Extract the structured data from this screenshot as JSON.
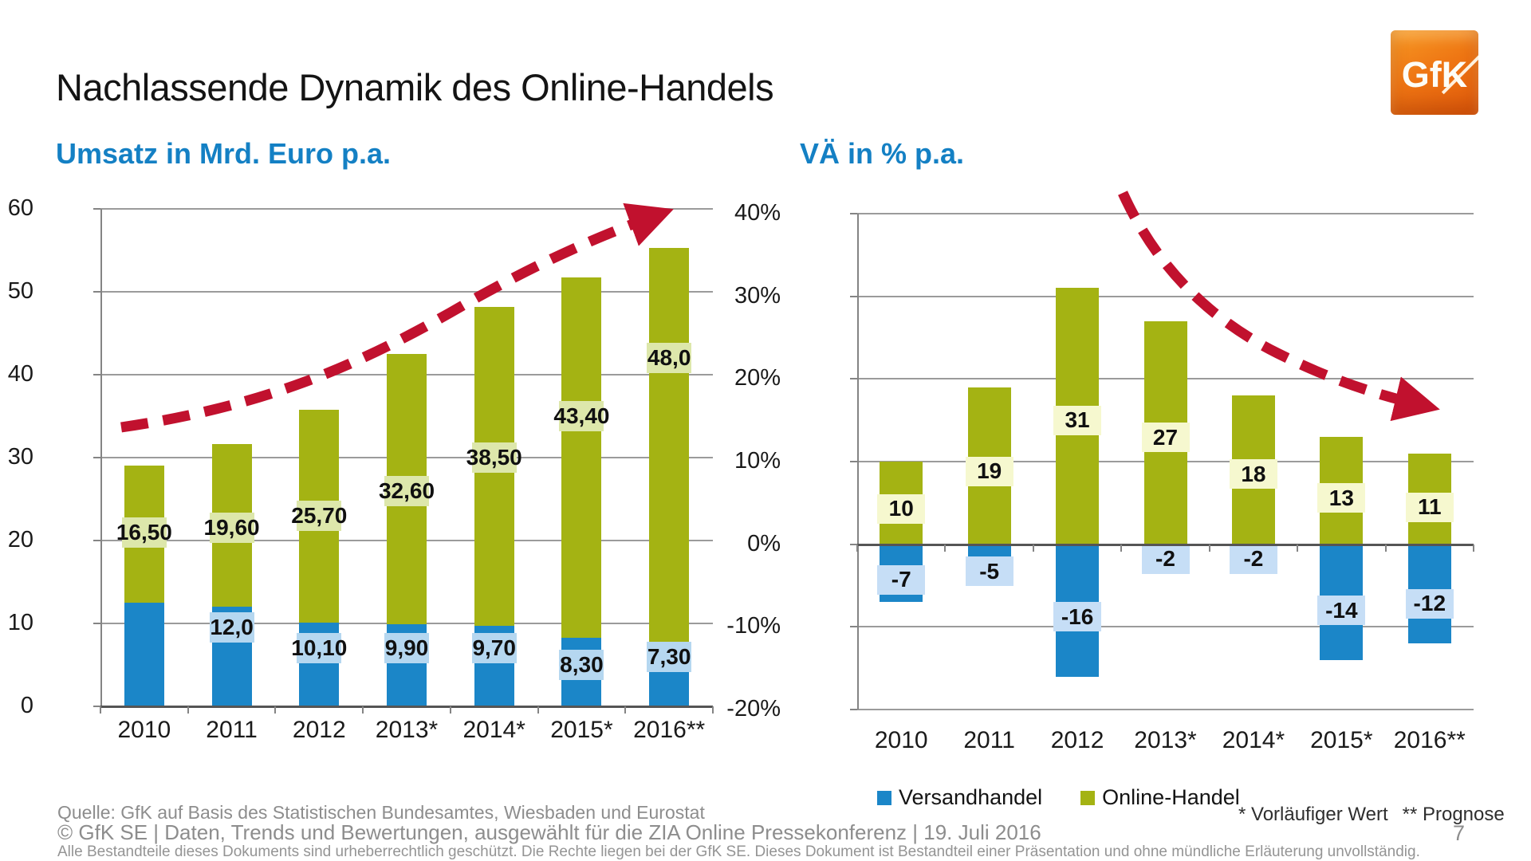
{
  "slide": {
    "title": "Nachlassende Dynamik des Online-Handels",
    "page_number": "7"
  },
  "logo": {
    "text": "GfK",
    "bg_color": "#ee7513"
  },
  "legend": {
    "items": [
      {
        "label": "Versandhandel",
        "color": "#1b86c8"
      },
      {
        "label": "Online-Handel",
        "color": "#a4b313"
      }
    ]
  },
  "footnotes": {
    "marker1": "* Vorläufiger Wert",
    "marker2": "** Prognose"
  },
  "footer": {
    "line1": "Quelle: GfK auf Basis des Statistischen Bundesamtes, Wiesbaden und Eurostat",
    "line2": "© GfK SE | Daten, Trends und Bewertungen, ausgewählt für die ZIA Online Pressekonferenz  | 19. Juli 2016",
    "line3": "Alle Bestandteile dieses Dokuments sind urheberrechtlich geschützt. Die Rechte liegen bei der GfK SE. Dieses Dokument ist Bestandteil einer Präsentation und ohne mündliche Erläuterung unvollständig."
  },
  "chart_data": [
    {
      "id": "umsatz",
      "type": "bar",
      "stacked": true,
      "title": "Umsatz in Mrd. Euro p.a.",
      "categories": [
        "2010",
        "2011",
        "2012",
        "2013*",
        "2014*",
        "2015*",
        "2016**"
      ],
      "ylim": [
        0,
        60
      ],
      "grid": true,
      "yticks": [
        {
          "v": 60,
          "label": "60"
        },
        {
          "v": 50,
          "label": "50"
        },
        {
          "v": 40,
          "label": "40"
        },
        {
          "v": 30,
          "label": "30"
        },
        {
          "v": 20,
          "label": "20"
        },
        {
          "v": 10,
          "label": "10"
        },
        {
          "v": 0,
          "label": "0"
        }
      ],
      "series": [
        {
          "name": "Versandhandel",
          "color": "#1b86c8",
          "label_bg": "#b5d7f0",
          "values": [
            12.5,
            12.0,
            10.1,
            9.9,
            9.7,
            8.3,
            7.3
          ],
          "labels": [
            "",
            "12,0",
            "10,10",
            "9,90",
            "9,70",
            "8,30",
            "7,30"
          ],
          "label_y": [
            null,
            9.5,
            7,
            7,
            7,
            5,
            6
          ]
        },
        {
          "name": "Online-Handel",
          "color": "#a4b313",
          "label_bg": "#dde7ab",
          "values": [
            16.5,
            19.6,
            25.7,
            32.6,
            38.5,
            43.4,
            48.0
          ],
          "labels": [
            "16,50",
            "19,60",
            "25,70",
            "32,60",
            "38,50",
            "43,40",
            "48,0"
          ],
          "label_y": [
            21,
            21.5,
            23,
            26,
            30,
            35,
            42
          ]
        }
      ],
      "trend_arrow": {
        "direction": "up",
        "color": "#c1112e"
      }
    },
    {
      "id": "vae",
      "type": "bar",
      "stacked": true,
      "title": "VÄ in % p.a.",
      "categories": [
        "2010",
        "2011",
        "2012",
        "2013*",
        "2014*",
        "2015*",
        "2016**"
      ],
      "ylim": [
        -20,
        40
      ],
      "grid": true,
      "yticks": [
        {
          "v": 40,
          "label": "40%"
        },
        {
          "v": 30,
          "label": "30%"
        },
        {
          "v": 20,
          "label": "20%"
        },
        {
          "v": 10,
          "label": "10%"
        },
        {
          "v": 0,
          "label": "0%"
        },
        {
          "v": -10,
          "label": "-10%"
        },
        {
          "v": -20,
          "label": "-20%"
        }
      ],
      "series": [
        {
          "name": "Versandhandel",
          "color": "#1b86c8",
          "label_bg": "#c6def6",
          "values": [
            -7,
            -5,
            -16,
            -2,
            -2,
            -14,
            -12
          ],
          "labels": [
            "-7",
            "-5",
            "-16",
            "-2",
            "-2",
            "-14",
            "-12"
          ],
          "label_y": [
            -4.3,
            -3.3,
            -8.8,
            -1.8,
            -1.8,
            -8,
            -7.2
          ]
        },
        {
          "name": "Online-Handel",
          "color": "#a4b313",
          "label_bg": "#f6f8cf",
          "values": [
            10,
            19,
            31,
            27,
            18,
            13,
            11
          ],
          "labels": [
            "10",
            "19",
            "31",
            "27",
            "18",
            "13",
            "11"
          ],
          "label_y": [
            4.3,
            8.8,
            15,
            12.9,
            8.5,
            5.6,
            4.5
          ]
        }
      ],
      "trend_arrow": {
        "direction": "down",
        "color": "#c1112e"
      }
    }
  ]
}
